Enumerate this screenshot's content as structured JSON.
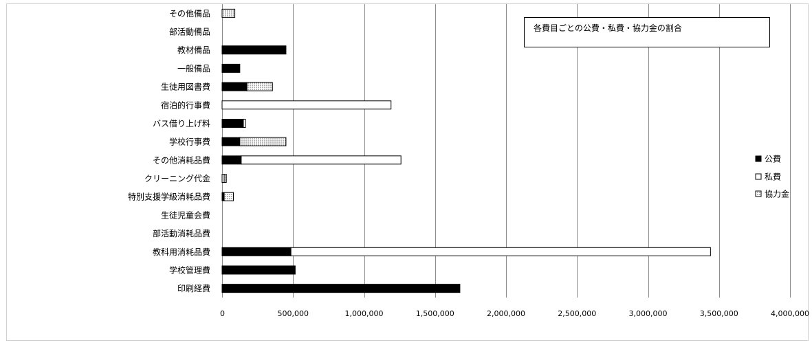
{
  "chart_data": {
    "type": "bar",
    "orientation": "horizontal",
    "stacked": true,
    "title": "各費目ごとの公費・私費・協力金の割合",
    "categories": [
      "その他備品",
      "部活動備品",
      "教材備品",
      "一般備品",
      "生徒用図書費",
      "宿泊的行事費",
      "バス借り上げ料",
      "学校行事費",
      "その他消耗品費",
      "クリーニング代金",
      "特別支援学級消耗品費",
      "生徒児童会費",
      "部活動消耗品費",
      "教科用消耗品費",
      "学校管理費",
      "印刷経費"
    ],
    "series": [
      {
        "name": "公費",
        "color": "#000000",
        "pattern": "solid",
        "values": [
          0,
          0,
          450000,
          125000,
          175000,
          0,
          150000,
          125000,
          135000,
          0,
          15000,
          0,
          0,
          485000,
          515000,
          1675000
        ]
      },
      {
        "name": "私費",
        "color": "#ffffff",
        "pattern": "outline",
        "values": [
          0,
          0,
          0,
          0,
          0,
          1190000,
          15000,
          0,
          1125000,
          15000,
          0,
          0,
          0,
          2955000,
          0,
          0
        ]
      },
      {
        "name": "協力金",
        "color": "#ffffff",
        "pattern": "dotted",
        "values": [
          90000,
          0,
          0,
          0,
          180000,
          0,
          0,
          325000,
          0,
          15000,
          65000,
          0,
          0,
          0,
          0,
          0
        ]
      }
    ],
    "xlim": [
      0,
      4000000
    ],
    "x_ticks": [
      0,
      500000,
      1000000,
      1500000,
      2000000,
      2500000,
      3000000,
      3500000,
      4000000
    ],
    "x_tick_labels": [
      "0",
      "500,000",
      "1,000,000",
      "1,500,000",
      "2,000,000",
      "2,500,000",
      "3,000,000",
      "3,500,000",
      "4,000,000"
    ],
    "xlabel": "",
    "ylabel": "",
    "grid": "vertical",
    "legend_position": "right"
  }
}
